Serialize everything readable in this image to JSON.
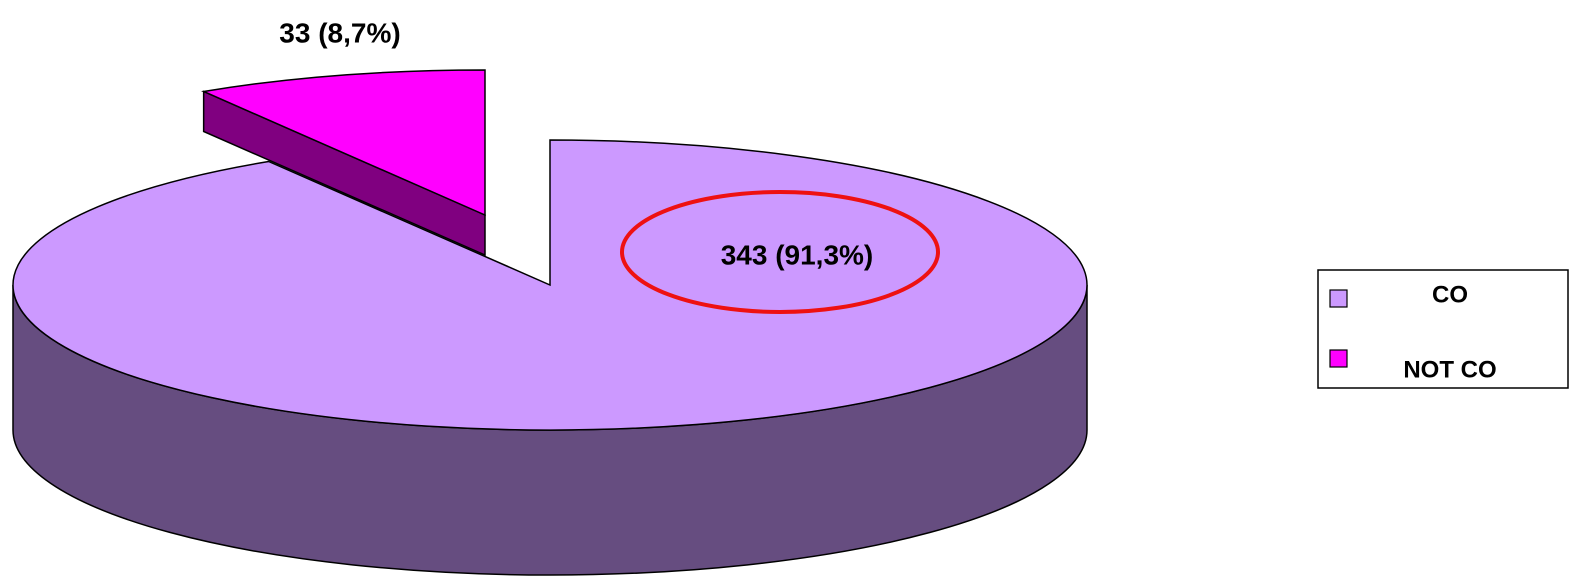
{
  "chart_data": {
    "type": "pie",
    "categories": [
      "CO",
      "NOT CO"
    ],
    "values": [
      343,
      33
    ],
    "value_labels": [
      "343 (91,3%)",
      "33 (8,7%)"
    ],
    "colors": [
      "#cc99ff",
      "#ff00ff"
    ],
    "legend": "right"
  }
}
